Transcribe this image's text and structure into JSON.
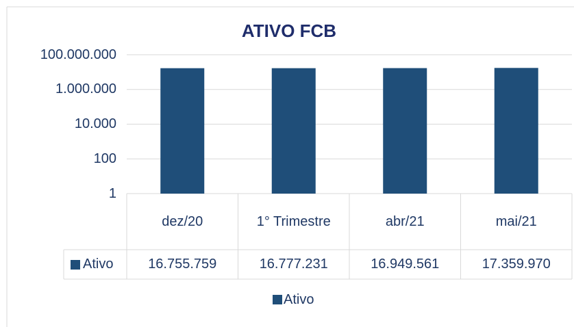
{
  "chart_data": {
    "type": "bar",
    "title": "ATIVO FCB",
    "categories": [
      "dez/20",
      "1° Trimestre",
      "abr/21",
      "mai/21"
    ],
    "series": [
      {
        "name": "Ativo",
        "color": "#1f4e79",
        "values": [
          16755759,
          16777231,
          16949561,
          17359970
        ],
        "value_labels": [
          "16.755.759",
          "16.777.231",
          "16.949.561",
          "17.359.970"
        ]
      }
    ],
    "yscale": "log",
    "ylim": [
      1,
      100000000
    ],
    "yticks": [
      1,
      100,
      {
        "value": 10000,
        "label": "10.000"
      },
      {
        "value": 1000000,
        "label": "1.000.000"
      },
      {
        "value": 100000000,
        "label": "100.000.000"
      }
    ],
    "grid": true,
    "data_table": true,
    "legend": "bottom"
  }
}
